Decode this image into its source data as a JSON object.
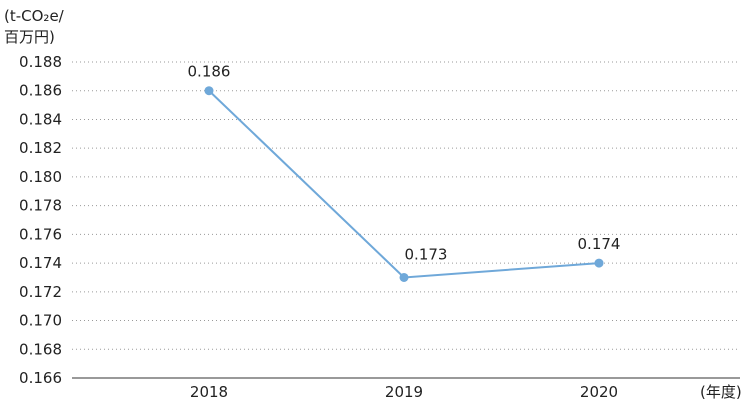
{
  "chart_data": {
    "type": "line",
    "y_unit_label_line1": "(t-CO₂e/",
    "y_unit_label_line2": "百万円)",
    "x_unit_label": "(年度)",
    "categories": [
      "2018",
      "2019",
      "2020"
    ],
    "series": [
      {
        "values": [
          0.186,
          0.173,
          0.174
        ]
      }
    ],
    "data_labels": [
      "0.186",
      "0.173",
      "0.174"
    ],
    "ylim": [
      0.166,
      0.188
    ],
    "yticks": [
      "0.188",
      "0.186",
      "0.184",
      "0.182",
      "0.180",
      "0.178",
      "0.176",
      "0.174",
      "0.172",
      "0.170",
      "0.168",
      "0.166"
    ],
    "grid": "horizontal dotted",
    "colors": {
      "line": "#6fa8d9",
      "marker": "#6fa8d9",
      "grid": "#9a9a9a",
      "axis": "#333333",
      "text": "#222222"
    }
  }
}
